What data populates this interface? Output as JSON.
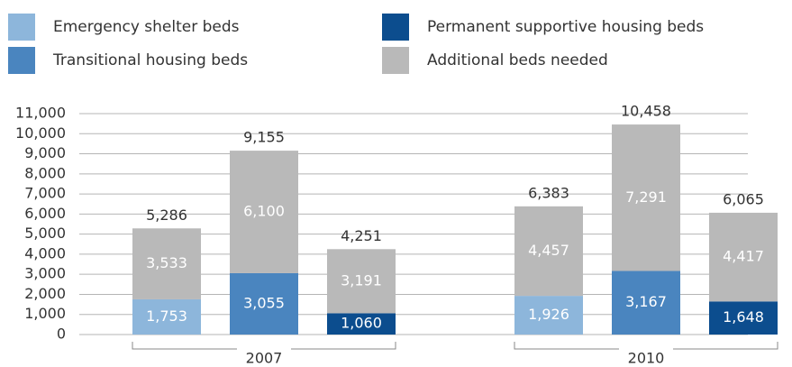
{
  "chart_data": {
    "type": "grouped-stacked-bar",
    "categories": [
      "2007",
      "2010"
    ],
    "series": [
      {
        "name": "Emergency shelter beds",
        "color": "#8db6db",
        "values": [
          1753,
          1926
        ],
        "value_labels": [
          "1,753",
          "1,926"
        ]
      },
      {
        "name": "Transitional housing beds",
        "color": "#4a85bf",
        "values": [
          3055,
          3167
        ],
        "value_labels": [
          "3,055",
          "3,167"
        ]
      },
      {
        "name": "Permanent supportive housing beds",
        "color": "#0c4d8e",
        "values": [
          1060,
          1648
        ],
        "value_labels": [
          "1,060",
          "1,648"
        ]
      },
      {
        "name": "Additional beds needed",
        "color": "#b9b9b9",
        "values": [
          [
            3533,
            6100,
            3191
          ],
          [
            4457,
            7291,
            4417
          ]
        ],
        "value_labels": [
          [
            "3,533",
            "6,100",
            "3,191"
          ],
          [
            "4,457",
            "7,291",
            "4,417"
          ]
        ]
      }
    ],
    "totals": {
      "values": [
        [
          5286,
          9155,
          4251
        ],
        [
          6383,
          10458,
          6065
        ]
      ],
      "value_labels": [
        [
          "5,286",
          "9,155",
          "4,251"
        ],
        [
          "6,383",
          "10,458",
          "6,065"
        ]
      ]
    },
    "ylim": [
      0,
      11000
    ],
    "yticks": [
      0,
      {
        "value": 1000,
        "label": "1,000"
      },
      {
        "value": 2000,
        "label": "2,000"
      },
      {
        "value": 3000,
        "label": "3,000"
      },
      {
        "value": 4000,
        "label": "4,000"
      },
      {
        "value": 5000,
        "label": "5,000"
      },
      {
        "value": 6000,
        "label": "6,000"
      },
      {
        "value": 7000,
        "label": "7,000"
      },
      {
        "value": 8000,
        "label": "8,000"
      },
      {
        "value": 9000,
        "label": "9,000"
      },
      {
        "value": 10000,
        "label": "10,000"
      },
      {
        "value": 11000,
        "label": "11,000"
      }
    ],
    "grid": true
  }
}
